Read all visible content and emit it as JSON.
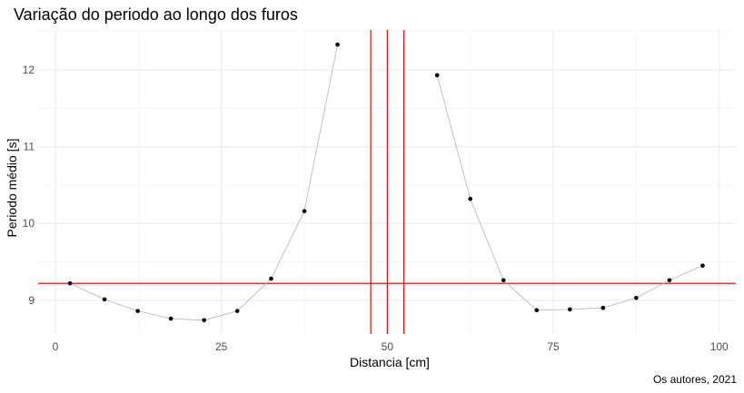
{
  "chart_data": {
    "type": "scatter",
    "title": "Variação do periodo ao longo dos furos",
    "xlabel": "Distancia [cm]",
    "ylabel": "Periodo médio [s]",
    "caption": "Os autores, 2021",
    "xlim": [
      -2.6,
      102.5
    ],
    "ylim": [
      8.56,
      12.52
    ],
    "x_ticks": [
      0,
      25,
      50,
      75,
      100
    ],
    "y_ticks": [
      9,
      10,
      11,
      12
    ],
    "grid": true,
    "series": [
      {
        "color": "#000000",
        "line_color": "#b3b3b3",
        "points": [
          {
            "x": 2.2,
            "y": 9.22
          },
          {
            "x": 7.4,
            "y": 9.01
          },
          {
            "x": 12.4,
            "y": 8.86
          },
          {
            "x": 17.4,
            "y": 8.76
          },
          {
            "x": 22.4,
            "y": 8.74
          },
          {
            "x": 27.4,
            "y": 8.86
          },
          {
            "x": 32.5,
            "y": 9.28
          },
          {
            "x": 37.5,
            "y": 10.16
          },
          {
            "x": 42.5,
            "y": 12.33
          }
        ]
      },
      {
        "color": "#000000",
        "line_color": "#b3b3b3",
        "points": [
          {
            "x": 57.5,
            "y": 11.93
          },
          {
            "x": 62.5,
            "y": 10.32
          },
          {
            "x": 67.5,
            "y": 9.26
          },
          {
            "x": 72.5,
            "y": 8.87
          },
          {
            "x": 77.5,
            "y": 8.88
          },
          {
            "x": 82.5,
            "y": 8.9
          },
          {
            "x": 87.5,
            "y": 9.03
          },
          {
            "x": 92.5,
            "y": 9.26
          },
          {
            "x": 97.5,
            "y": 9.45
          }
        ]
      }
    ],
    "reference_lines": {
      "color": "#cc0000",
      "vertical_x": [
        47.5,
        50.0,
        52.5
      ],
      "horizontal_y": [
        9.22
      ]
    }
  }
}
